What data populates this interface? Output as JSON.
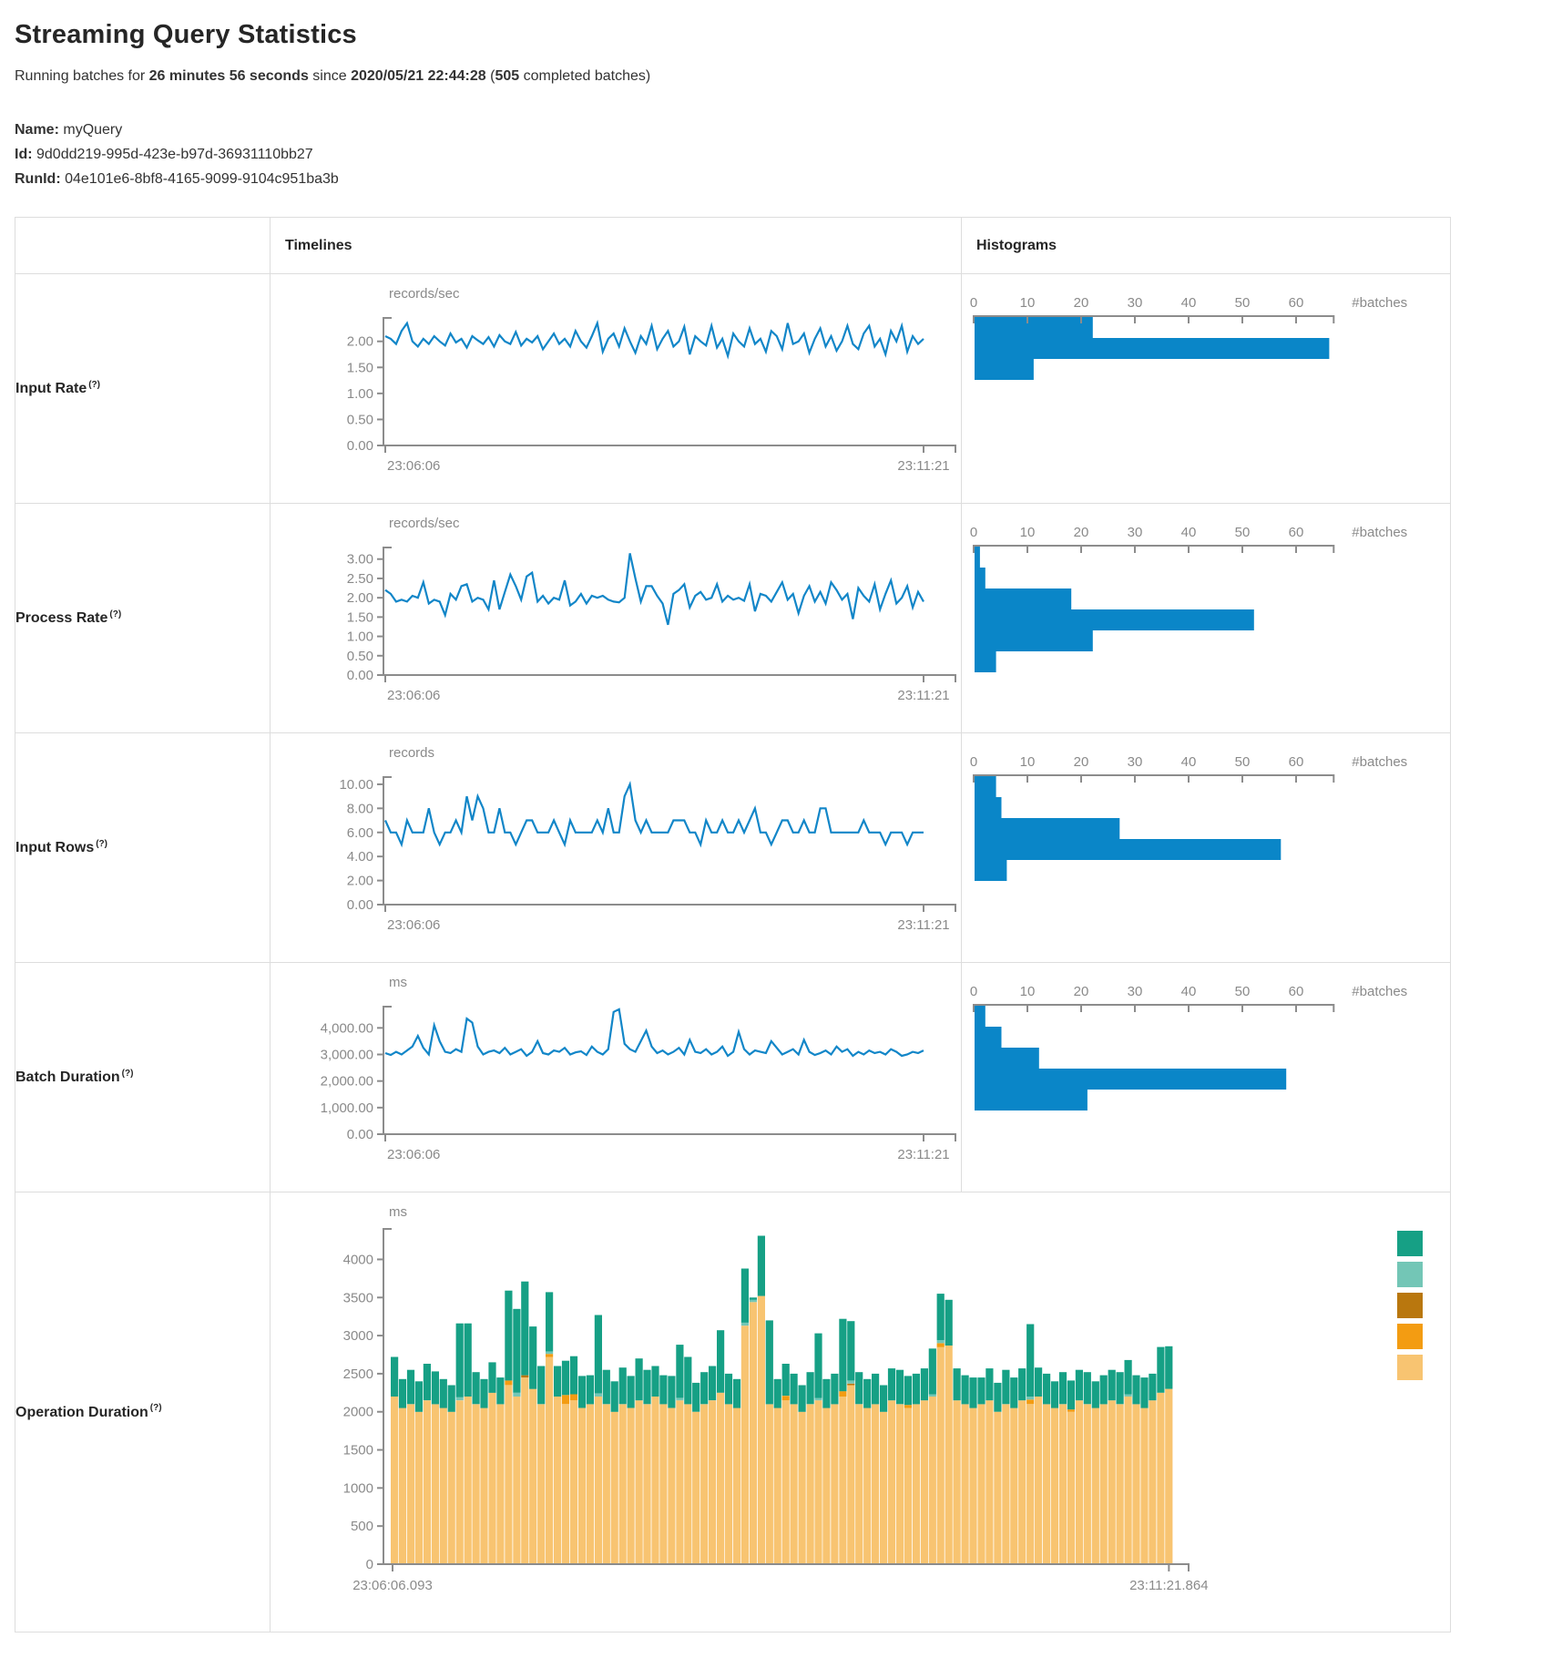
{
  "page": {
    "title": "Streaming Query Statistics",
    "subtitle": {
      "prefix": "Running batches for ",
      "duration": "26 minutes 56 seconds",
      "mid": " since ",
      "timestamp": "2020/05/21 22:44:28",
      "paren_open": " (",
      "completed_batches": "505",
      "suffix": " completed batches)"
    },
    "info": {
      "name_label": "Name:",
      "name_value": "myQuery",
      "id_label": "Id:",
      "id_value": "9d0dd219-995d-423e-b97d-36931110bb27",
      "runid_label": "RunId:",
      "runid_value": "04e101e6-8bf8-4165-9099-9104c951ba3b"
    }
  },
  "table": {
    "headers": {
      "timelines": "Timelines",
      "histograms": "Histograms"
    },
    "rows": [
      {
        "label": "Input Rate",
        "help": "(?)"
      },
      {
        "label": "Process Rate",
        "help": "(?)"
      },
      {
        "label": "Input Rows",
        "help": "(?)"
      },
      {
        "label": "Batch Duration",
        "help": "(?)"
      },
      {
        "label": "Operation Duration",
        "help": "(?)"
      }
    ]
  },
  "colors": {
    "line": "#1286c8",
    "bar": "#0a86c8",
    "axis": "#8c8c8c",
    "tick_text": "#8a8a8a",
    "op_green": "#16A085",
    "op_light_teal": "#73C6B6",
    "op_dark_yellow": "#B9770E",
    "op_orange": "#F39C12",
    "op_tan": "#F8C471"
  },
  "chart_data": [
    {
      "id": "input-rate-timeline",
      "type": "line",
      "title": "Input Rate timeline",
      "ylabel": "records/sec",
      "x_start": "23:06:06",
      "x_end": "23:11:21",
      "yticks": [
        "0.00",
        "0.50",
        "1.00",
        "1.50",
        "2.00"
      ],
      "ytick_values": [
        0,
        0.5,
        1,
        1.5,
        2
      ],
      "ylim": [
        0,
        2.45
      ],
      "values": [
        2.1,
        2.05,
        1.95,
        2.2,
        2.35,
        2.0,
        1.9,
        2.05,
        1.95,
        2.1,
        2.0,
        1.92,
        2.15,
        1.98,
        2.05,
        1.88,
        2.1,
        2.02,
        1.95,
        2.08,
        1.9,
        2.12,
        2.0,
        1.95,
        2.18,
        1.92,
        2.05,
        1.98,
        2.1,
        1.85,
        2.0,
        2.15,
        1.95,
        2.05,
        1.9,
        2.2,
        2.0,
        1.88,
        2.1,
        2.35,
        1.8,
        2.05,
        2.15,
        1.9,
        2.25,
        2.0,
        1.78,
        2.1,
        1.95,
        2.3,
        1.85,
        2.05,
        2.2,
        1.9,
        2.0,
        2.28,
        1.75,
        2.1,
        2.0,
        1.92,
        2.3,
        1.88,
        2.05,
        1.72,
        2.15,
        2.0,
        1.9,
        2.25,
        1.95,
        2.05,
        1.8,
        2.2,
        2.1,
        1.85,
        2.35,
        1.95,
        2.0,
        2.15,
        1.78,
        2.05,
        2.25,
        1.9,
        2.1,
        1.82,
        2.0,
        2.3,
        1.95,
        1.85,
        2.15,
        2.3,
        1.9,
        2.05,
        1.75,
        2.2,
        2.0,
        2.3,
        1.8,
        2.1,
        1.95,
        2.05
      ]
    },
    {
      "id": "input-rate-histogram",
      "type": "bar",
      "orientation": "horizontal",
      "title": "Input Rate histogram",
      "xlabel": "#batches",
      "xticks": [
        0,
        10,
        20,
        30,
        40,
        50,
        60
      ],
      "xlim": [
        0,
        67
      ],
      "values": [
        22,
        66,
        11
      ]
    },
    {
      "id": "process-rate-timeline",
      "type": "line",
      "title": "Process Rate timeline",
      "ylabel": "records/sec",
      "x_start": "23:06:06",
      "x_end": "23:11:21",
      "yticks": [
        "0.00",
        "0.50",
        "1.00",
        "1.50",
        "2.00",
        "2.50",
        "3.00"
      ],
      "ytick_values": [
        0,
        0.5,
        1,
        1.5,
        2,
        2.5,
        3
      ],
      "ylim": [
        0,
        3.3
      ],
      "values": [
        2.2,
        2.1,
        1.9,
        1.95,
        1.9,
        2.05,
        2.0,
        2.4,
        1.85,
        1.95,
        1.9,
        1.55,
        2.1,
        1.95,
        2.3,
        2.35,
        1.9,
        2.0,
        1.95,
        1.7,
        2.45,
        1.7,
        2.15,
        2.6,
        2.3,
        1.95,
        2.55,
        2.65,
        1.9,
        2.05,
        1.85,
        2.0,
        1.95,
        2.45,
        1.8,
        1.9,
        2.1,
        1.85,
        2.05,
        2.0,
        2.05,
        1.95,
        1.9,
        1.88,
        2.0,
        3.15,
        2.5,
        1.9,
        2.3,
        2.3,
        2.05,
        1.85,
        1.3,
        2.1,
        2.2,
        2.35,
        1.75,
        2.05,
        2.15,
        1.95,
        2.0,
        2.35,
        1.9,
        2.05,
        1.95,
        2.0,
        1.92,
        2.35,
        1.65,
        2.1,
        2.05,
        1.9,
        2.15,
        2.4,
        1.95,
        2.1,
        1.6,
        2.05,
        2.3,
        1.9,
        2.15,
        1.85,
        2.4,
        2.2,
        1.95,
        2.1,
        1.45,
        2.25,
        2.05,
        1.9,
        2.35,
        1.7,
        2.1,
        2.45,
        1.85,
        2.0,
        2.3,
        1.75,
        2.15,
        1.9
      ]
    },
    {
      "id": "process-rate-histogram",
      "type": "bar",
      "orientation": "horizontal",
      "title": "Process Rate histogram",
      "xlabel": "#batches",
      "xticks": [
        0,
        10,
        20,
        30,
        40,
        50,
        60
      ],
      "xlim": [
        0,
        67
      ],
      "values": [
        1,
        2,
        18,
        52,
        22,
        4
      ]
    },
    {
      "id": "input-rows-timeline",
      "type": "line",
      "title": "Input Rows timeline",
      "ylabel": "records",
      "x_start": "23:06:06",
      "x_end": "23:11:21",
      "yticks": [
        "0.00",
        "2.00",
        "4.00",
        "6.00",
        "8.00",
        "10.00"
      ],
      "ytick_values": [
        0,
        2,
        4,
        6,
        8,
        10
      ],
      "ylim": [
        0,
        10.6
      ],
      "values": [
        7,
        6,
        6,
        5,
        7,
        6,
        6,
        6,
        8,
        6,
        5,
        6,
        6,
        7,
        6,
        9,
        7,
        9,
        8,
        6,
        6,
        8,
        6,
        6,
        5,
        6,
        7,
        7,
        6,
        6,
        6,
        7,
        6,
        5,
        7,
        6,
        6,
        6,
        6,
        7,
        6,
        8,
        6,
        6,
        9,
        10,
        7,
        6,
        7,
        6,
        6,
        6,
        6,
        7,
        7,
        7,
        6,
        6,
        5,
        7,
        6,
        6,
        7,
        6,
        6,
        7,
        6,
        7,
        8,
        6,
        6,
        5,
        6,
        7,
        7,
        6,
        6,
        7,
        6,
        6,
        8,
        8,
        6,
        6,
        6,
        6,
        6,
        6,
        7,
        6,
        6,
        6,
        5,
        6,
        6,
        6,
        5,
        6,
        6,
        6
      ]
    },
    {
      "id": "input-rows-histogram",
      "type": "bar",
      "orientation": "horizontal",
      "title": "Input Rows histogram",
      "xlabel": "#batches",
      "xticks": [
        0,
        10,
        20,
        30,
        40,
        50,
        60
      ],
      "xlim": [
        0,
        67
      ],
      "values": [
        4,
        5,
        27,
        57,
        6
      ]
    },
    {
      "id": "batch-duration-timeline",
      "type": "line",
      "title": "Batch Duration timeline",
      "ylabel": "ms",
      "x_start": "23:06:06",
      "x_end": "23:11:21",
      "yticks": [
        "0.00",
        "1,000.00",
        "2,000.00",
        "3,000.00",
        "4,000.00"
      ],
      "ytick_values": [
        0,
        1000,
        2000,
        3000,
        4000
      ],
      "ylim": [
        0,
        4800
      ],
      "values": [
        3050,
        2980,
        3100,
        3000,
        3150,
        3300,
        3700,
        3250,
        3000,
        4100,
        3500,
        3100,
        3050,
        3200,
        3100,
        4350,
        4200,
        3300,
        3000,
        3100,
        3150,
        3050,
        3250,
        3000,
        3100,
        3200,
        2950,
        3100,
        3500,
        3050,
        3000,
        3150,
        3100,
        3250,
        3000,
        3080,
        3120,
        2980,
        3300,
        3100,
        3000,
        3200,
        4600,
        4700,
        3400,
        3200,
        3100,
        3500,
        3900,
        3300,
        3050,
        3150,
        3000,
        3100,
        3250,
        3000,
        3550,
        3100,
        3050,
        3200,
        3000,
        3100,
        3300,
        2950,
        3100,
        3850,
        3200,
        3000,
        3150,
        3100,
        3050,
        3500,
        3250,
        3000,
        3100,
        3200,
        3000,
        3550,
        3100,
        2980,
        3050,
        3150,
        3000,
        3300,
        3100,
        3200,
        2950,
        3100,
        3000,
        3150,
        3050,
        3100,
        3000,
        3200,
        3100,
        2950,
        3000,
        3100,
        3050,
        3150
      ]
    },
    {
      "id": "batch-duration-histogram",
      "type": "bar",
      "orientation": "horizontal",
      "title": "Batch Duration histogram",
      "xlabel": "#batches",
      "xticks": [
        0,
        10,
        20,
        30,
        40,
        50,
        60
      ],
      "xlim": [
        0,
        67
      ],
      "values": [
        2,
        5,
        12,
        58,
        21
      ]
    },
    {
      "id": "operation-duration-chart",
      "type": "stacked-bar",
      "title": "Operation Duration",
      "ylabel": "ms",
      "x_start": "23:06:06.093",
      "x_end": "23:11:21.864",
      "yticks": [
        "0",
        "500",
        "1000",
        "1500",
        "2000",
        "2500",
        "3000",
        "3500",
        "4000"
      ],
      "ytick_values": [
        0,
        500,
        1000,
        1500,
        2000,
        2500,
        3000,
        3500,
        4000
      ],
      "ylim": [
        0,
        4400
      ],
      "legend_colors": [
        "#16A085",
        "#73C6B6",
        "#B9770E",
        "#F39C12",
        "#F8C471"
      ],
      "series": [
        {
          "name": "base",
          "color": "#F8C471",
          "values": [
            2200,
            2050,
            2100,
            2000,
            2150,
            2100,
            2050,
            2000,
            2150,
            2200,
            2100,
            2050,
            2250,
            2100,
            2350,
            2200,
            2450,
            2300,
            2100,
            2720,
            2200,
            2100,
            2150,
            2050,
            2100,
            2200,
            2100,
            2000,
            2100,
            2050,
            2150,
            2100,
            2200,
            2100,
            2050,
            2150,
            2100,
            2000,
            2100,
            2150,
            2250,
            2100,
            2050,
            3130,
            3440,
            3520,
            2100,
            2050,
            2150,
            2100,
            2000,
            2100,
            2150,
            2050,
            2100,
            2200,
            2350,
            2100,
            2050,
            2100,
            2000,
            2150,
            2100,
            2050,
            2100,
            2150,
            2200,
            2850,
            2870,
            2150,
            2100,
            2050,
            2100,
            2150,
            2000,
            2100,
            2050,
            2150,
            2100,
            2200,
            2100,
            2050,
            2100,
            2000,
            2150,
            2100,
            2050,
            2100,
            2150,
            2100,
            2200,
            2100,
            2050,
            2150,
            2250,
            2300
          ]
        },
        {
          "name": "accent-orange",
          "color": "#F39C12",
          "values": [
            0,
            0,
            0,
            0,
            0,
            0,
            0,
            0,
            0,
            0,
            0,
            0,
            0,
            0,
            60,
            0,
            0,
            0,
            0,
            40,
            0,
            120,
            80,
            0,
            0,
            0,
            0,
            0,
            0,
            0,
            0,
            0,
            0,
            0,
            0,
            0,
            0,
            0,
            0,
            0,
            0,
            0,
            0,
            0,
            0,
            0,
            0,
            0,
            60,
            0,
            0,
            0,
            0,
            0,
            0,
            70,
            0,
            0,
            0,
            0,
            0,
            0,
            0,
            40,
            0,
            0,
            0,
            50,
            0,
            0,
            0,
            0,
            0,
            0,
            0,
            0,
            0,
            0,
            60,
            0,
            0,
            0,
            0,
            30,
            0,
            0,
            0,
            0,
            0,
            0,
            0,
            0,
            0,
            0,
            0,
            0
          ]
        },
        {
          "name": "accent-dark-yellow",
          "color": "#B9770E",
          "values": [
            0,
            0,
            0,
            0,
            0,
            0,
            0,
            0,
            0,
            0,
            0,
            0,
            0,
            0,
            0,
            0,
            30,
            0,
            0,
            0,
            0,
            0,
            0,
            0,
            0,
            0,
            0,
            0,
            0,
            0,
            0,
            0,
            0,
            0,
            0,
            0,
            0,
            0,
            0,
            0,
            0,
            0,
            0,
            0,
            0,
            0,
            0,
            0,
            0,
            0,
            0,
            0,
            0,
            0,
            0,
            0,
            20,
            0,
            0,
            0,
            0,
            0,
            0,
            0,
            0,
            0,
            0,
            0,
            0,
            0,
            0,
            0,
            0,
            0,
            0,
            0,
            0,
            0,
            0,
            0,
            0,
            0,
            0,
            0,
            0,
            0,
            0,
            0,
            0,
            0,
            0,
            0,
            0,
            0,
            0,
            0
          ]
        },
        {
          "name": "accent-light-teal",
          "color": "#73C6B6",
          "values": [
            0,
            0,
            0,
            0,
            0,
            0,
            0,
            0,
            40,
            0,
            0,
            0,
            0,
            0,
            0,
            50,
            0,
            0,
            0,
            30,
            0,
            0,
            0,
            0,
            0,
            40,
            0,
            0,
            0,
            0,
            0,
            0,
            0,
            0,
            0,
            30,
            0,
            0,
            0,
            0,
            0,
            0,
            0,
            40,
            30,
            0,
            0,
            0,
            0,
            0,
            0,
            0,
            30,
            0,
            0,
            0,
            40,
            0,
            0,
            0,
            0,
            0,
            0,
            0,
            0,
            0,
            30,
            40,
            0,
            0,
            0,
            0,
            0,
            0,
            0,
            0,
            0,
            0,
            40,
            0,
            0,
            0,
            0,
            0,
            0,
            0,
            0,
            0,
            0,
            0,
            30,
            0,
            0,
            0,
            0,
            0
          ]
        },
        {
          "name": "top",
          "color": "#16A085",
          "values": [
            520,
            380,
            450,
            400,
            480,
            430,
            380,
            350,
            970,
            960,
            420,
            380,
            400,
            350,
            1180,
            1100,
            1230,
            820,
            500,
            780,
            400,
            450,
            500,
            420,
            380,
            1030,
            450,
            400,
            480,
            420,
            550,
            450,
            400,
            380,
            420,
            700,
            620,
            380,
            420,
            450,
            820,
            400,
            380,
            710,
            30,
            790,
            1100,
            380,
            420,
            400,
            350,
            420,
            850,
            380,
            400,
            950,
            780,
            420,
            380,
            400,
            350,
            420,
            450,
            380,
            400,
            420,
            600,
            610,
            600,
            420,
            380,
            400,
            350,
            420,
            380,
            450,
            400,
            420,
            950,
            380,
            400,
            350,
            420,
            380,
            400,
            420,
            350,
            380,
            400,
            420,
            450,
            380,
            400,
            350,
            600,
            560
          ]
        }
      ]
    }
  ]
}
